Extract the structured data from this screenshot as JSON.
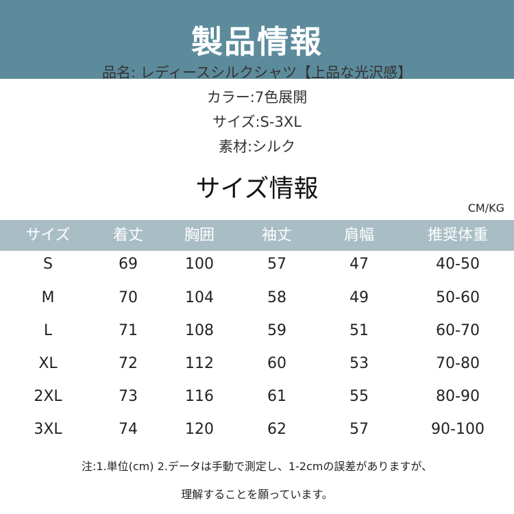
{
  "banner": {
    "title": "製品情報",
    "color": "#5c8b9c"
  },
  "info": [
    "品名: レディースシルクシャツ【上品な光沢感】",
    "カラー:7色展開",
    "サイズ:S-3XL",
    "素材:シルク"
  ],
  "size_section": {
    "title": "サイズ情報",
    "unit": "CM/KG",
    "header_color": "#a9bdc5"
  },
  "table": {
    "headers": [
      "サイズ",
      "着丈",
      "胸囲",
      "袖丈",
      "肩幅",
      "推奨体重"
    ],
    "rows": [
      [
        "S",
        "69",
        "100",
        "57",
        "47",
        "40-50"
      ],
      [
        "M",
        "70",
        "104",
        "58",
        "49",
        "50-60"
      ],
      [
        "L",
        "71",
        "108",
        "59",
        "51",
        "60-70"
      ],
      [
        "XL",
        "72",
        "112",
        "60",
        "53",
        "70-80"
      ],
      [
        "2XL",
        "73",
        "116",
        "61",
        "55",
        "80-90"
      ],
      [
        "3XL",
        "74",
        "120",
        "62",
        "57",
        "90-100"
      ]
    ]
  },
  "notes": [
    "注:1.単位(cm) 2.データは手動で測定し、1-2cmの誤差がありますが、",
    "理解することを願っています。"
  ]
}
